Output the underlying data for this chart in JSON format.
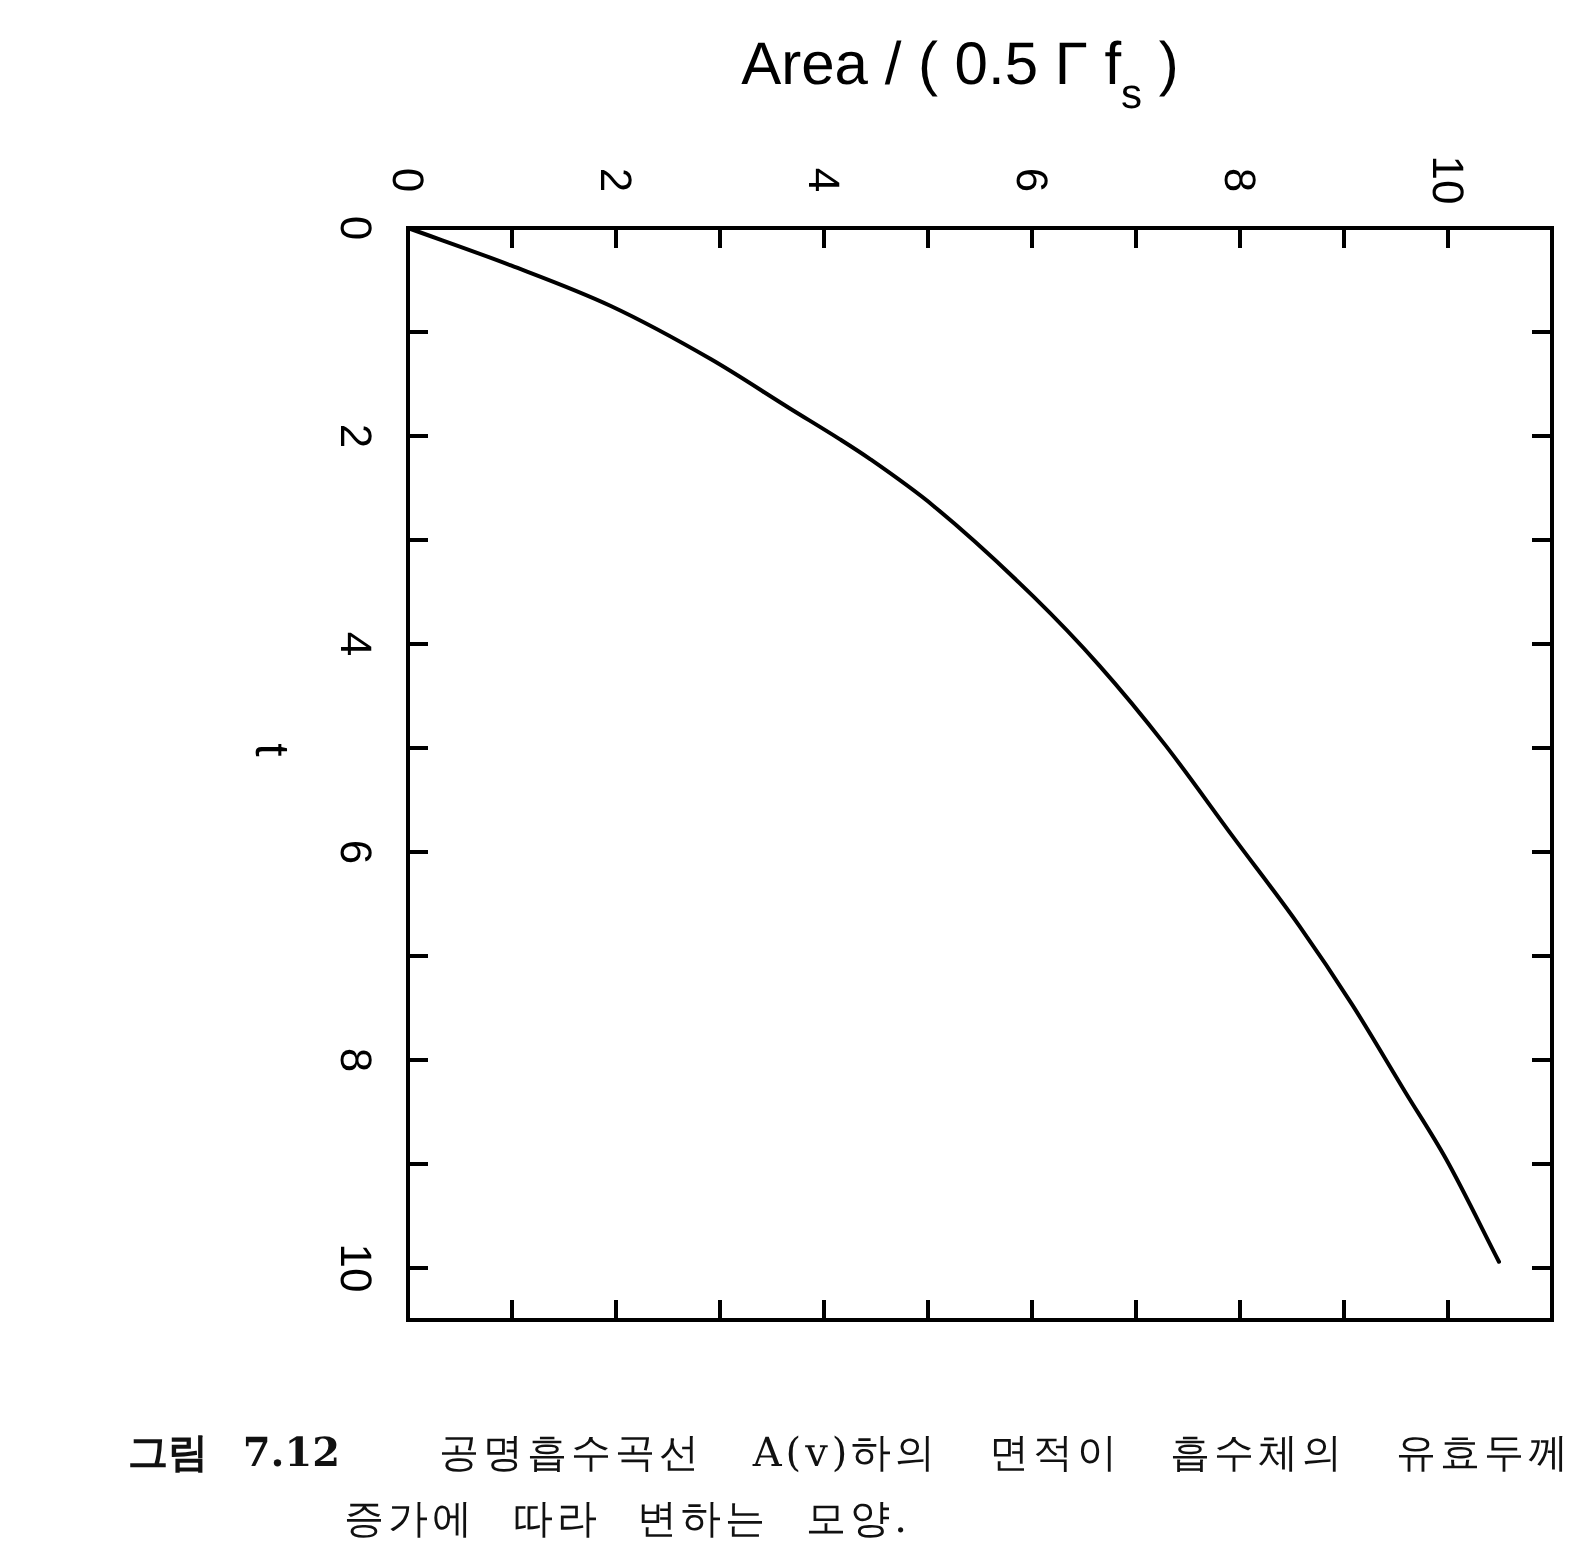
{
  "chart_data": {
    "type": "line",
    "xlabel": "Area / ( 0.5 Γ f$_{s}$ )",
    "ylabel": "t",
    "annotations": [
      "그림 7.12",
      "공명흡수곡선 A(v)하의 면적이 흡수체의 유효두께 증가에 따라 변하는 모양."
    ],
    "series": [
      {
        "color": "#000000",
        "x": [
          0,
          0.99,
          1.95,
          2.91,
          3.68,
          4.15,
          4.44,
          5.05,
          6.01,
          6.65,
          7.28,
          7.93,
          8.57,
          9.08,
          9.59,
          9.98,
          10.49
        ],
        "values": [
          0,
          0.36,
          0.75,
          1.26,
          1.74,
          2.03,
          2.22,
          2.67,
          3.54,
          4.21,
          4.97,
          5.85,
          6.71,
          7.47,
          8.31,
          8.95,
          9.94
        ]
      }
    ],
    "xlim": [
      0,
      11
    ],
    "xticks": [
      0,
      {
        "value": 1,
        "label": null
      },
      2,
      {
        "value": 3,
        "label": null
      },
      4,
      {
        "value": 5,
        "label": null
      },
      6,
      {
        "value": 7,
        "label": null
      },
      8,
      {
        "value": 9,
        "label": null
      },
      10
    ],
    "ylim": [
      10.5,
      0
    ],
    "yticks": [
      0,
      {
        "value": 1,
        "label": null
      },
      2,
      {
        "value": 3,
        "label": null
      },
      4,
      {
        "value": 5,
        "label": null
      },
      6,
      {
        "value": 7,
        "label": null
      },
      8,
      {
        "value": 9,
        "label": null
      },
      10
    ],
    "line_style": "solid"
  }
}
